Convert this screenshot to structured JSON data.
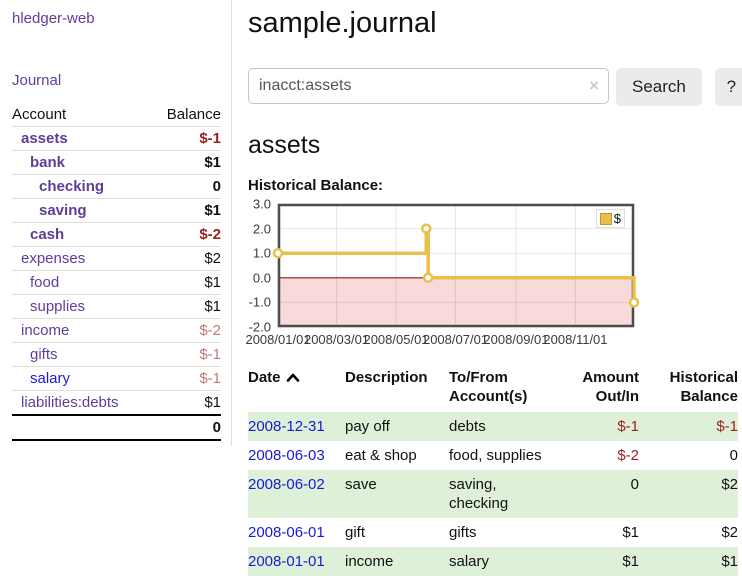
{
  "sidebar": {
    "app_title": "hledger-web",
    "nav_journal": "Journal",
    "accounts": {
      "col_account": "Account",
      "col_balance": "Balance",
      "rows": [
        {
          "name": "assets",
          "balance": "$-1"
        },
        {
          "name": "bank",
          "balance": "$1"
        },
        {
          "name": "checking",
          "balance": "0"
        },
        {
          "name": "saving",
          "balance": "$1"
        },
        {
          "name": "cash",
          "balance": "$-2"
        },
        {
          "name": "expenses",
          "balance": "$2"
        },
        {
          "name": "food",
          "balance": "$1"
        },
        {
          "name": "supplies",
          "balance": "$1"
        },
        {
          "name": "income",
          "balance": "$-2"
        },
        {
          "name": "gifts",
          "balance": "$-1"
        },
        {
          "name": "salary",
          "balance": "$-1"
        },
        {
          "name": "liabilities:debts",
          "balance": "$1"
        }
      ],
      "total": "0"
    }
  },
  "header": {
    "page_title": "sample.journal"
  },
  "search": {
    "value": "inacct:assets",
    "clear_icon": "×",
    "search_label": "Search",
    "help_label": "?"
  },
  "section": {
    "title": "assets",
    "chart_label": "Historical Balance:"
  },
  "chart_data": {
    "type": "line",
    "title": "Historical Balance:",
    "step": true,
    "ylim": [
      -2,
      3
    ],
    "yticks": [
      "3.0",
      "2.0",
      "1.0",
      "0.0",
      "-1.0",
      "-2.0"
    ],
    "xticks": [
      "2008/01/01",
      "2008/03/01",
      "2008/05/01",
      "2008/07/01",
      "2008/09/01",
      "2008/11/01"
    ],
    "xrange": [
      "2008-01-01",
      "2008-12-31"
    ],
    "grid": true,
    "legend_position": "top-right",
    "negative_fill": "#f9dada",
    "zero_line_color": "#8b1c1c",
    "series": [
      {
        "name": "$",
        "color": "#e9c04b",
        "points": [
          [
            "2008-01-01",
            1
          ],
          [
            "2008-06-01",
            2
          ],
          [
            "2008-06-03",
            0
          ],
          [
            "2008-12-31",
            -1
          ]
        ]
      }
    ]
  },
  "transactions": {
    "headers": {
      "date": "Date",
      "description": "Description",
      "accounts": "To/From Account(s)",
      "amount": "Amount Out/In",
      "balance": "Historical Balance"
    },
    "rows": [
      {
        "date": "2008-12-31",
        "description": "pay off",
        "accounts": "debts",
        "amount": "$-1",
        "balance": "$-1"
      },
      {
        "date": "2008-06-03",
        "description": "eat & shop",
        "accounts": "food, supplies",
        "amount": "$-2",
        "balance": "0"
      },
      {
        "date": "2008-06-02",
        "description": "save",
        "accounts": "saving, checking",
        "amount": "0",
        "balance": "$2"
      },
      {
        "date": "2008-06-01",
        "description": "gift",
        "accounts": "gifts",
        "amount": "$1",
        "balance": "$2"
      },
      {
        "date": "2008-01-01",
        "description": "income",
        "accounts": "salary",
        "amount": "$1",
        "balance": "$1"
      }
    ]
  }
}
